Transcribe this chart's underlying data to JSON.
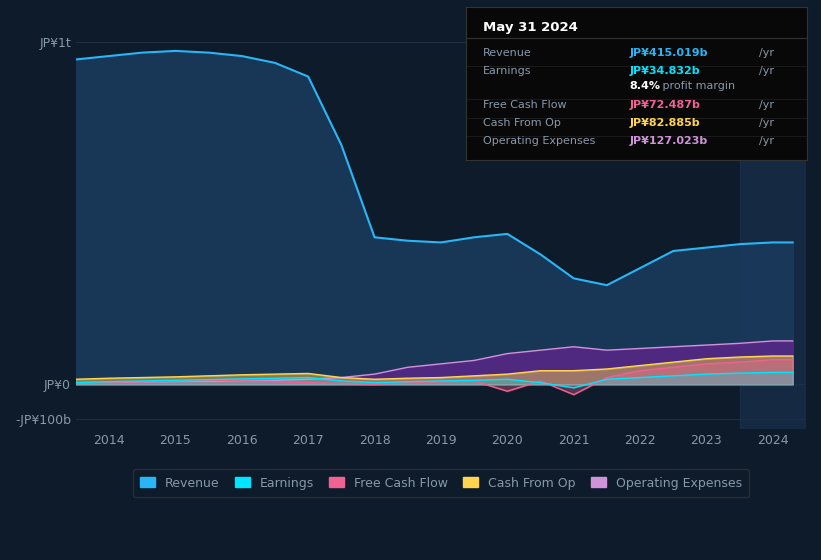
{
  "bg_color": "#0d1b2a",
  "plot_bg_color": "#0d1b2a",
  "grid_color": "#1e3048",
  "text_color": "#8899aa",
  "title_color": "#ffffff",
  "years": [
    2013.5,
    2014,
    2014.5,
    2015,
    2015.5,
    2016,
    2016.5,
    2017,
    2017.5,
    2018,
    2018.5,
    2019,
    2019.5,
    2020,
    2020.5,
    2021,
    2021.5,
    2022,
    2022.5,
    2023,
    2023.5,
    2024,
    2024.3
  ],
  "revenue": [
    950,
    960,
    970,
    975,
    970,
    960,
    940,
    900,
    700,
    430,
    420,
    415,
    430,
    440,
    380,
    310,
    290,
    340,
    390,
    400,
    410,
    415,
    415
  ],
  "earnings": [
    5,
    8,
    10,
    12,
    14,
    16,
    18,
    20,
    10,
    5,
    8,
    10,
    12,
    15,
    5,
    -10,
    15,
    20,
    25,
    30,
    33,
    35,
    35
  ],
  "free_cash_flow": [
    5,
    7,
    8,
    10,
    12,
    10,
    8,
    5,
    3,
    0,
    5,
    8,
    10,
    -20,
    10,
    -30,
    20,
    40,
    50,
    60,
    65,
    72,
    72
  ],
  "cash_from_op": [
    15,
    18,
    20,
    22,
    25,
    28,
    30,
    32,
    20,
    15,
    18,
    20,
    25,
    30,
    40,
    40,
    45,
    55,
    65,
    75,
    80,
    83,
    83
  ],
  "operating_expenses": [
    5,
    6,
    7,
    8,
    9,
    10,
    12,
    15,
    20,
    30,
    50,
    60,
    70,
    90,
    100,
    110,
    100,
    105,
    110,
    115,
    120,
    127,
    127
  ],
  "revenue_color": "#29b6f6",
  "earnings_color": "#00e5ff",
  "fcf_color": "#f06292",
  "cashop_color": "#ffd54f",
  "opex_color": "#ce93d8",
  "revenue_fill": "#1a3a5c",
  "opex_fill": "#7b1fa2",
  "ytick_labels": [
    "-JP¥100b",
    "JP¥0",
    "JP¥1t"
  ],
  "ytick_values": [
    -100,
    0,
    1000
  ],
  "xtick_labels": [
    "2014",
    "2015",
    "2016",
    "2017",
    "2018",
    "2019",
    "2020",
    "2021",
    "2022",
    "2023",
    "2024"
  ],
  "xtick_values": [
    2014,
    2015,
    2016,
    2017,
    2018,
    2019,
    2020,
    2021,
    2022,
    2023,
    2024
  ],
  "panel_bg": "#080808",
  "panel_title": "May 31 2024",
  "panel_rows": [
    {
      "label": "Revenue",
      "value": "JP¥415.019b /yr",
      "value_color": "#29b6f6"
    },
    {
      "label": "Earnings",
      "value": "JP¥34.832b /yr",
      "value_color": "#00e5ff"
    },
    {
      "label": "",
      "value": "8.4% profit margin",
      "value_color": "#aaaaaa"
    },
    {
      "label": "Free Cash Flow",
      "value": "JP¥72.487b /yr",
      "value_color": "#f06292"
    },
    {
      "label": "Cash From Op",
      "value": "JP¥82.885b /yr",
      "value_color": "#ffd54f"
    },
    {
      "label": "Operating Expenses",
      "value": "JP¥127.023b /yr",
      "value_color": "#ce93d8"
    }
  ],
  "legend_items": [
    {
      "label": "Revenue",
      "color": "#29b6f6"
    },
    {
      "label": "Earnings",
      "color": "#00e5ff"
    },
    {
      "label": "Free Cash Flow",
      "color": "#f06292"
    },
    {
      "label": "Cash From Op",
      "color": "#ffd54f"
    },
    {
      "label": "Operating Expenses",
      "color": "#ce93d8"
    }
  ],
  "shade_start": 2023.5,
  "shade_end": 2024.5,
  "ylim": [
    -130,
    1080
  ],
  "xlim": [
    2013.5,
    2024.5
  ]
}
